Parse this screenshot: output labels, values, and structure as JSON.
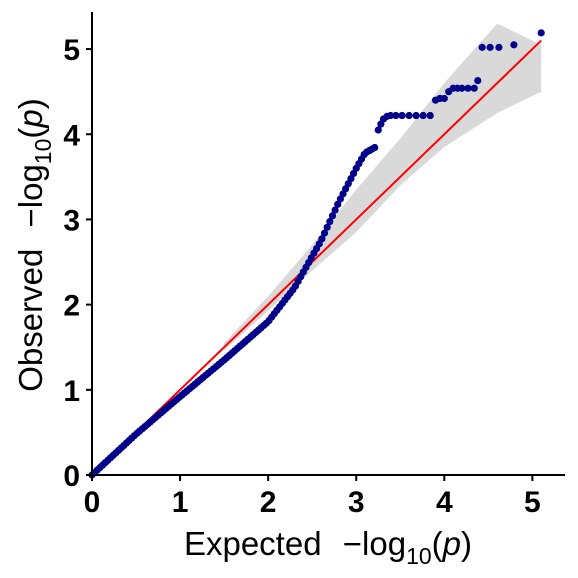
{
  "chart_data": {
    "type": "scatter",
    "title": "",
    "xlabel": {
      "prefix": "Expected",
      "minus": "−",
      "log": "log",
      "base": "10",
      "open": "(",
      "var": "p",
      "close": ")"
    },
    "ylabel": {
      "prefix": "Observed",
      "minus": "−",
      "log": "log",
      "base": "10",
      "open": "(",
      "var": "p",
      "close": ")"
    },
    "xlim": [
      0,
      5.2
    ],
    "ylim": [
      0,
      5.4
    ],
    "x_ticks": [
      "0",
      "1",
      "2",
      "3",
      "4",
      "5"
    ],
    "y_ticks": [
      "0",
      "1",
      "2",
      "3",
      "4",
      "5"
    ],
    "grid": false,
    "legend": "none",
    "colors": {
      "points": "#00008b",
      "reference_line": "#ff0000",
      "confidence_band": "#d9d9d9",
      "axis": "#000000"
    },
    "series": [
      {
        "kind": "points",
        "curve": [
          [
            0.0,
            0.0
          ],
          [
            0.5,
            0.48
          ],
          [
            1.0,
            0.92
          ],
          [
            1.5,
            1.35
          ],
          [
            2.0,
            1.8
          ],
          [
            2.3,
            2.2
          ],
          [
            2.6,
            2.75
          ],
          [
            2.8,
            3.2
          ],
          [
            3.0,
            3.6
          ],
          [
            3.1,
            3.78
          ],
          [
            3.22,
            3.85
          ]
        ],
        "curve_step": 0.03,
        "discrete": [
          [
            3.25,
            4.05
          ],
          [
            3.28,
            4.12
          ],
          [
            3.31,
            4.18
          ],
          [
            3.35,
            4.21
          ],
          [
            3.39,
            4.22
          ],
          [
            3.45,
            4.22
          ],
          [
            3.52,
            4.22
          ],
          [
            3.6,
            4.22
          ],
          [
            3.68,
            4.22
          ],
          [
            3.76,
            4.22
          ],
          [
            3.84,
            4.22
          ],
          [
            3.9,
            4.4
          ],
          [
            3.95,
            4.42
          ],
          [
            4.0,
            4.42
          ],
          [
            4.05,
            4.5
          ],
          [
            4.1,
            4.54
          ],
          [
            4.15,
            4.54
          ],
          [
            4.2,
            4.54
          ],
          [
            4.27,
            4.54
          ],
          [
            4.34,
            4.54
          ],
          [
            4.38,
            4.63
          ],
          [
            4.43,
            5.02
          ],
          [
            4.52,
            5.02
          ],
          [
            4.62,
            5.02
          ],
          [
            4.79,
            5.05
          ],
          [
            5.1,
            5.19
          ]
        ]
      },
      {
        "kind": "reference_line",
        "from": [
          0,
          0
        ],
        "to": [
          5.1,
          5.1
        ]
      },
      {
        "kind": "confidence_band",
        "upper": [
          [
            1.5,
            1.55
          ],
          [
            2.0,
            2.1
          ],
          [
            2.5,
            2.7
          ],
          [
            3.0,
            3.35
          ],
          [
            3.5,
            3.95
          ],
          [
            4.0,
            4.6
          ],
          [
            4.3,
            4.95
          ],
          [
            4.6,
            5.3
          ],
          [
            5.0,
            5.1
          ],
          [
            5.1,
            5.05
          ]
        ],
        "lower": [
          [
            5.1,
            4.5
          ],
          [
            4.6,
            4.25
          ],
          [
            4.0,
            3.85
          ],
          [
            3.5,
            3.4
          ],
          [
            3.0,
            2.85
          ],
          [
            2.5,
            2.4
          ],
          [
            2.0,
            1.93
          ],
          [
            1.5,
            1.46
          ]
        ]
      }
    ]
  }
}
